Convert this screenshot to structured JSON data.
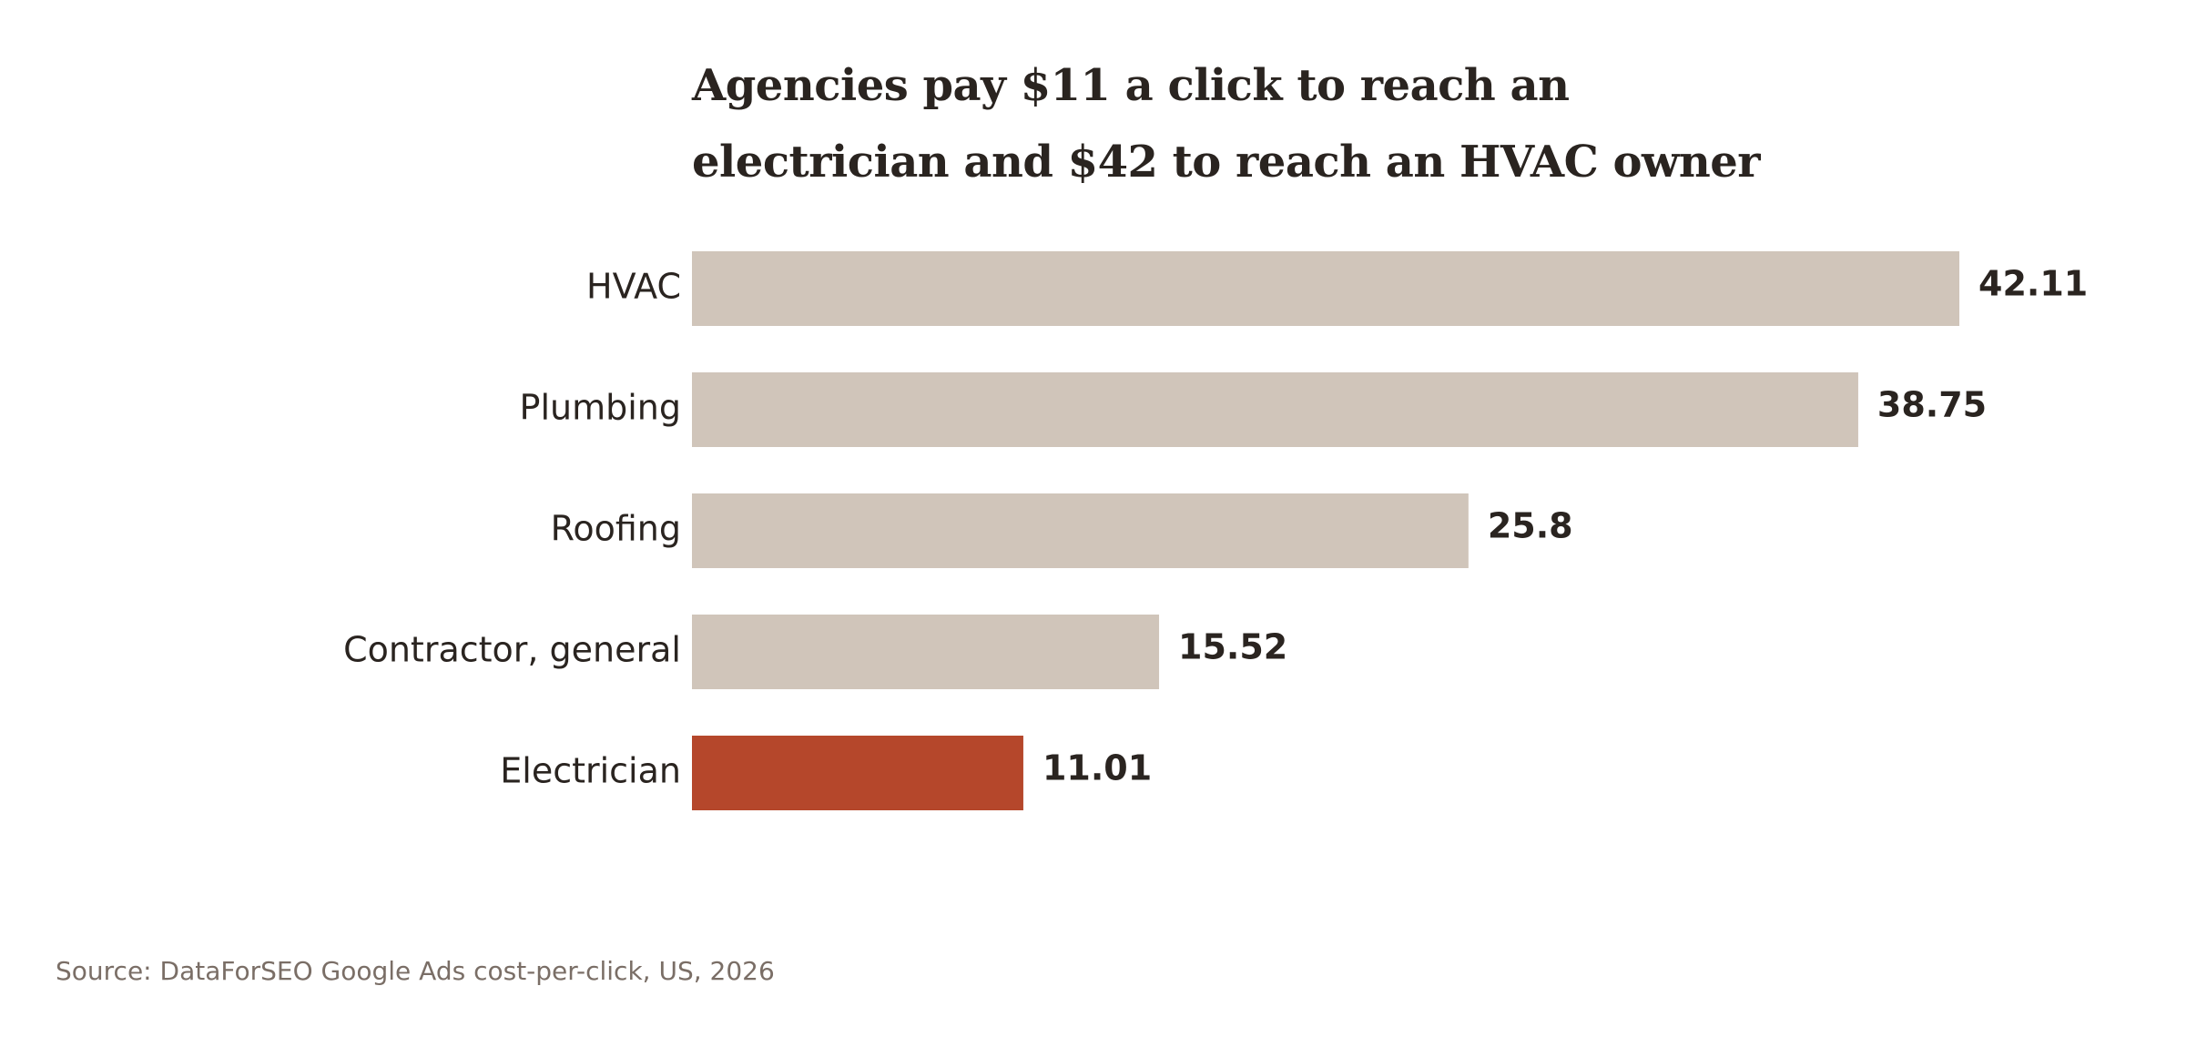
{
  "chart_data": {
    "type": "hbar",
    "title": "Agencies pay $11 a click to reach an electrician and $42 to reach an HVAC owner",
    "categories": [
      "HVAC",
      "Plumbing",
      "Roofing",
      "Contractor, general",
      "Electrician"
    ],
    "values": [
      42.11,
      38.75,
      25.8,
      15.52,
      11.01
    ],
    "colors": [
      "#d0c5ba",
      "#d0c5ba",
      "#d0c5ba",
      "#d0c5ba",
      "#b5472b"
    ],
    "source": "Source: DataForSEO Google Ads cost-per-click, US, 2026"
  }
}
